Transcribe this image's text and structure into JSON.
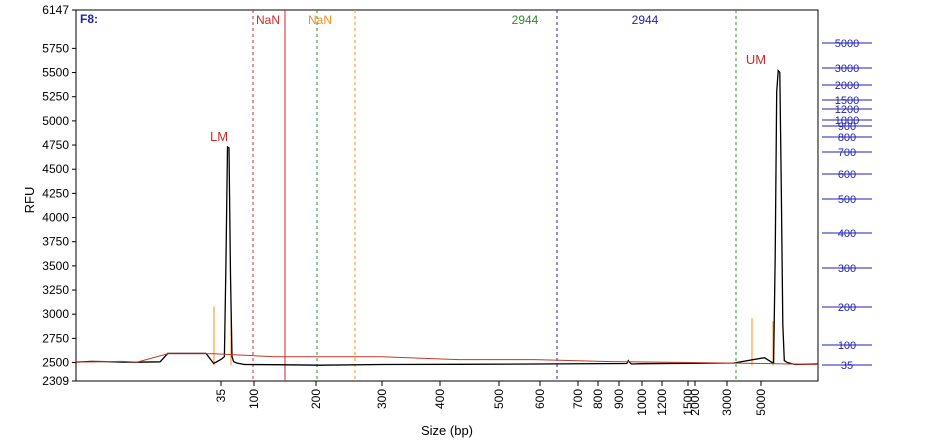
{
  "panel_label": "F8:",
  "chart_data": {
    "type": "line",
    "title": "",
    "xlabel": "Size (bp)",
    "ylabel": "RFU",
    "ylim": [
      2309,
      6147
    ],
    "y_ticks": [
      2309,
      2500,
      2750,
      3000,
      3250,
      3500,
      3750,
      4000,
      4250,
      4500,
      4750,
      5000,
      5250,
      5500,
      5750,
      6147
    ],
    "x_ticks": [
      "35",
      "100",
      "200",
      "300",
      "400",
      "500",
      "600",
      "700",
      "800",
      "900",
      "1000",
      "1200",
      "1500",
      "2000",
      "3000",
      "5000"
    ],
    "ladder_ticks": [
      "35",
      "100",
      "200",
      "300",
      "400",
      "500",
      "600",
      "700",
      "800",
      "900",
      "1000",
      "1200",
      "1500",
      "2000",
      "3000",
      "5000"
    ],
    "peak_labels": [
      "LM",
      "UM"
    ],
    "region_labels": [
      {
        "text": "NaN",
        "color": "#d62728"
      },
      {
        "text": "NaN",
        "color": "#ff8c1a"
      },
      {
        "text": "2944",
        "color": "#2e8b2e"
      },
      {
        "text": "2944",
        "color": "#1f1fb4"
      }
    ],
    "series": [
      {
        "type": "trace",
        "color": "#000000",
        "x": [
          0,
          10,
          20,
          30,
          40,
          55,
          60,
          70,
          80,
          85,
          90,
          95,
          97,
          98,
          99,
          100,
          101,
          102,
          103,
          105,
          110,
          130,
          160,
          200,
          250,
          300,
          360,
          361,
          362,
          363,
          370,
          400,
          430,
          450,
          455,
          456,
          457,
          458,
          459,
          460,
          461,
          462,
          463,
          465,
          470,
          485
        ],
        "y": [
          2505,
          2512,
          2510,
          2505,
          2503,
          2508,
          2595,
          2595,
          2595,
          2595,
          2490,
          2535,
          2560,
          3500,
          4730,
          4720,
          3400,
          2560,
          2510,
          2495,
          2480,
          2478,
          2472,
          2480,
          2482,
          2485,
          2490,
          2520,
          2500,
          2485,
          2488,
          2492,
          2495,
          2550,
          2500,
          2495,
          3600,
          5300,
          5520,
          5500,
          4300,
          2900,
          2520,
          2500,
          2480,
          2485
        ]
      },
      {
        "type": "baseline",
        "color": "#c0392b",
        "x": [
          0,
          30,
          40,
          60,
          90,
          130,
          200,
          250,
          300,
          350,
          400,
          450,
          485
        ],
        "y": [
          2505,
          2512,
          2505,
          2590,
          2590,
          2560,
          2560,
          2530,
          2530,
          2510,
          2500,
          2490,
          2480
        ]
      }
    ]
  }
}
